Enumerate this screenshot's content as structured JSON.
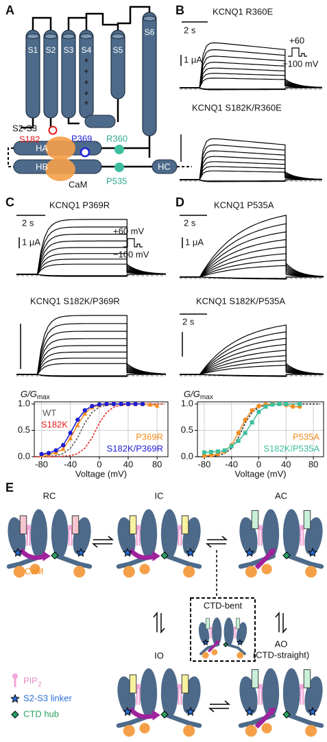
{
  "panel_a": {
    "label": "A",
    "segments": [
      "S1",
      "S2",
      "S3",
      "S4",
      "S5",
      "S6"
    ],
    "s2s3": "S2-S3",
    "s182": "S182",
    "p369": "P369",
    "r360": "R360",
    "p535": "P535",
    "ha": "HA",
    "hb": "HB",
    "hc": "HC",
    "cam": "CaM"
  },
  "panel_b": {
    "label": "B",
    "title_1": "KCNQ1 R360E",
    "title_2": "KCNQ1 S182K/R360E",
    "time_scale": "2 s",
    "current_scale": "1 μA",
    "step_high": "+60",
    "step_low": "−100 mV"
  },
  "panel_c": {
    "label": "C",
    "title_1": "KCNQ1 P369R",
    "title_2": "KCNQ1 S182K/P369R",
    "time_scale": "2 s",
    "current_scale": "1 μA",
    "step_high": "+60 mV",
    "step_low": "−100 mV"
  },
  "panel_d": {
    "label": "D",
    "title_1": "KCNQ1 P535A",
    "title_2": "KCNQ1 S182K/P535A",
    "time_scale_1": "2 s",
    "current_scale": "1 μA",
    "time_scale_2": "2 s"
  },
  "chart_data": [
    {
      "type": "line",
      "ylabel": "G/G",
      "ylabel_sub": "max",
      "xlabel": "Voltage (mV)",
      "xlim": [
        -90,
        95
      ],
      "ylim": [
        0,
        1.04
      ],
      "xticks": [
        -80,
        -40,
        0,
        40,
        80
      ],
      "yticks": [
        {
          "value": 0,
          "label": "0.0"
        },
        {
          "value": 0.5,
          "label": "0.5"
        },
        {
          "value": 1,
          "label": "1.0"
        }
      ],
      "grid": true,
      "series": [
        {
          "name": "WT",
          "color": "#555555",
          "style": "dashed",
          "x": [
            -90,
            -80,
            -70,
            -60,
            -50,
            -40,
            -30,
            -20,
            -10,
            0,
            10,
            20,
            30,
            40,
            50,
            60,
            70,
            80,
            90
          ],
          "values": [
            0,
            0,
            0.01,
            0.02,
            0.06,
            0.16,
            0.36,
            0.64,
            0.84,
            0.94,
            0.98,
            0.99,
            1,
            1,
            1,
            1,
            1,
            1,
            1
          ]
        },
        {
          "name": "S182K",
          "color": "#e8191b",
          "style": "dashed",
          "x": [
            -90,
            -80,
            -70,
            -60,
            -50,
            -40,
            -30,
            -20,
            -10,
            0,
            10,
            20,
            30,
            40,
            50,
            60,
            70,
            80,
            90
          ],
          "values": [
            0,
            0,
            0,
            0,
            0.01,
            0.02,
            0.06,
            0.16,
            0.36,
            0.64,
            0.84,
            0.94,
            0.98,
            0.99,
            1,
            1,
            1,
            1,
            1
          ]
        },
        {
          "name": "P369R",
          "color": "#f28c1e",
          "style": "markers",
          "marker": "triangle",
          "x": [
            -80,
            -70,
            -60,
            -50,
            -40,
            -30,
            -20,
            -10,
            0,
            10,
            20,
            30,
            40,
            50,
            60,
            70,
            80
          ],
          "values": [
            0.03,
            0.04,
            0.08,
            0.15,
            0.35,
            0.6,
            0.82,
            0.94,
            0.98,
            1,
            1,
            1,
            1,
            1,
            1,
            0.99,
            0.97
          ]
        },
        {
          "name": "S182K/P369R",
          "color": "#1f1fd6",
          "style": "markers",
          "marker": "circle",
          "x": [
            -80,
            -70,
            -60,
            -50,
            -40,
            -30,
            -20,
            -10,
            0,
            10,
            20,
            30,
            40,
            50,
            60
          ],
          "values": [
            0.05,
            0.07,
            0.12,
            0.22,
            0.45,
            0.7,
            0.88,
            0.96,
            0.99,
            1,
            1,
            1,
            1,
            1,
            1
          ]
        }
      ]
    },
    {
      "type": "line",
      "ylabel": "G/G",
      "ylabel_sub": "max",
      "xlabel": "Voltage (mV)",
      "xlim": [
        -90,
        95
      ],
      "ylim": [
        0,
        1.04
      ],
      "xticks": [
        -80,
        -40,
        0,
        40,
        80
      ],
      "yticks": [
        {
          "value": 0,
          "label": "0.0"
        },
        {
          "value": 0.5,
          "label": "0.5"
        },
        {
          "value": 1,
          "label": "1.0"
        }
      ],
      "grid": true,
      "series": [
        {
          "color": "#222222",
          "style": "dashed",
          "x": [
            -90,
            -80,
            -70,
            -60,
            -50,
            -40,
            -30,
            -20,
            -10,
            0,
            10,
            20,
            30,
            40,
            50,
            60,
            70,
            80,
            90
          ],
          "values": [
            0,
            0,
            0.01,
            0.02,
            0.06,
            0.16,
            0.36,
            0.64,
            0.84,
            0.94,
            0.98,
            0.99,
            1,
            1,
            1,
            1,
            1,
            1,
            1
          ]
        },
        {
          "name": "P535A",
          "color": "#f28c1e",
          "style": "markers",
          "marker": "circle",
          "x": [
            -80,
            -70,
            -60,
            -50,
            -40,
            -30,
            -20,
            -10,
            0,
            10,
            20,
            30,
            40,
            50,
            60
          ],
          "values": [
            0.02,
            0.03,
            0.05,
            0.1,
            0.22,
            0.45,
            0.7,
            0.88,
            0.96,
            0.99,
            1,
            1,
            0.98,
            0.95,
            0.95
          ]
        },
        {
          "name": "S182K/P535A",
          "color": "#3dbf9f",
          "style": "markers",
          "marker": "square",
          "x": [
            -80,
            -70,
            -60,
            -50,
            -40,
            -30,
            -20,
            -10,
            0,
            10,
            20,
            30,
            40,
            60
          ],
          "values": [
            0.08,
            0.09,
            0.1,
            0.12,
            0.2,
            0.3,
            0.45,
            0.65,
            0.85,
            0.95,
            0.99,
            1,
            1,
            1
          ]
        }
      ]
    }
  ],
  "panel_e": {
    "label": "E",
    "rc": "RC",
    "ic": "IC",
    "ac": "AC",
    "bent": "CTD-bent",
    "io": "IO",
    "ao": "AO",
    "ao_sub": "(CTD-straight)",
    "cam": "CaM",
    "legend_pip": "PIP",
    "legend_pip_sub": "2",
    "legend_linker": "S2-S3 linker",
    "legend_hub": "CTD hub"
  }
}
